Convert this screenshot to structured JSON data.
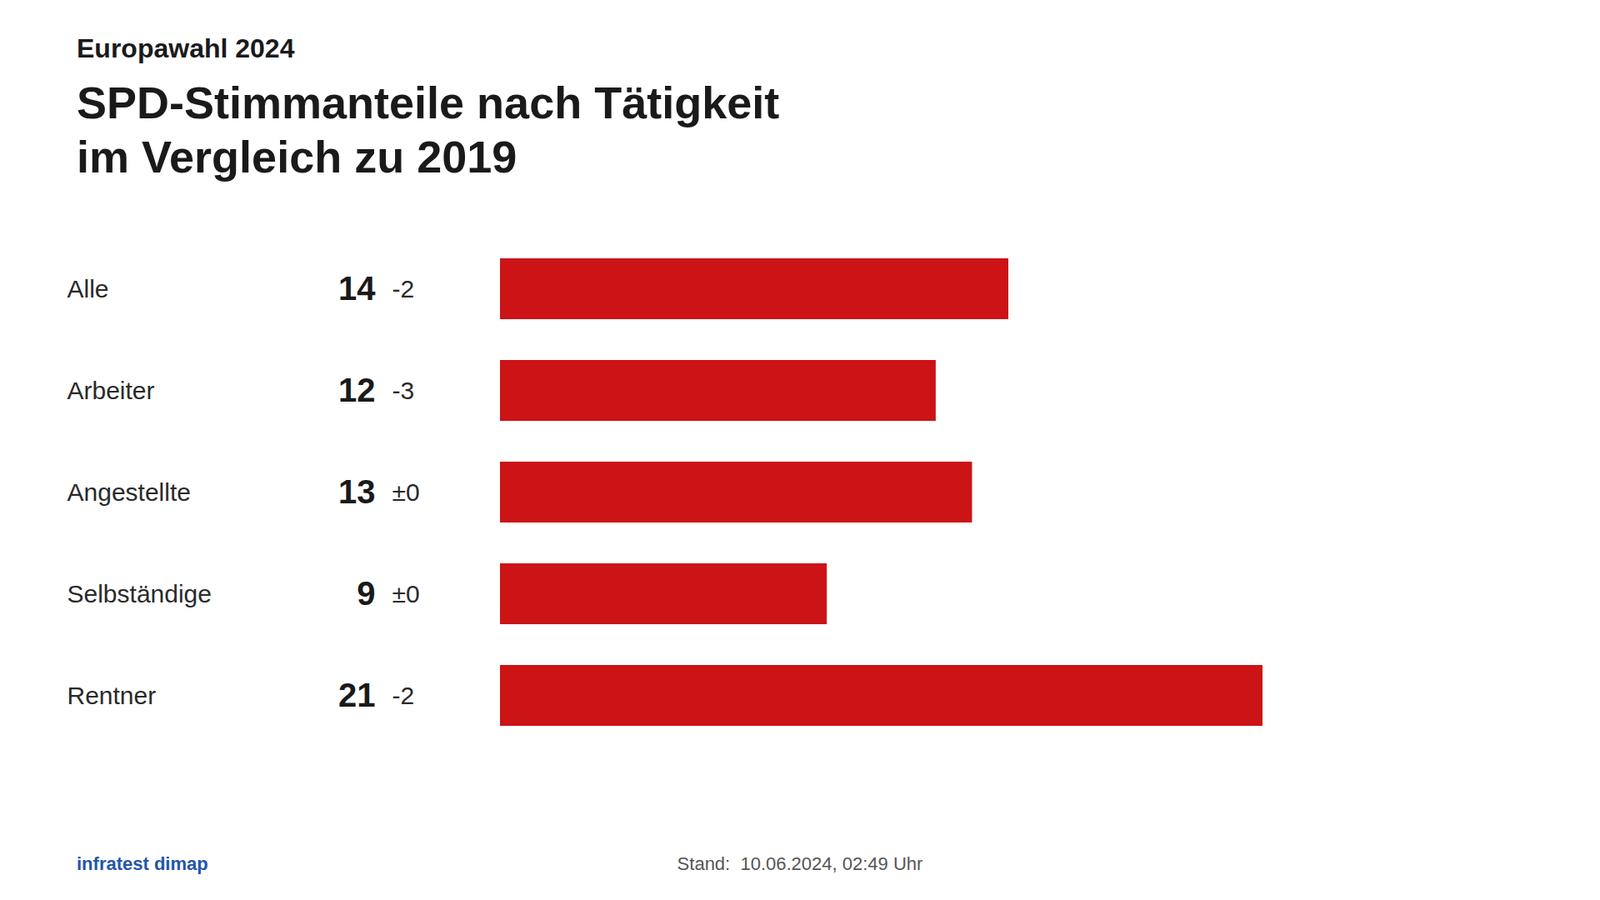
{
  "chart_data": {
    "type": "bar",
    "orientation": "horizontal",
    "kicker": "Europawahl 2024",
    "title": "SPD-Stimmanteile nach Tätigkeit",
    "subtitle": "im Vergleich zu 2019",
    "categories": [
      "Alle",
      "Arbeiter",
      "Angestellte",
      "Selbständige",
      "Rentner"
    ],
    "values": [
      14,
      12,
      13,
      9,
      21
    ],
    "changes": [
      "-2",
      "-3",
      "±0",
      "±0",
      "-2"
    ],
    "color": "#cc1316",
    "xlim": [
      0,
      28
    ],
    "tick_labels": false,
    "data_labels": true,
    "source": "infratest dimap",
    "footer": "Stand:  10.06.2024, 02:49 Uhr"
  }
}
